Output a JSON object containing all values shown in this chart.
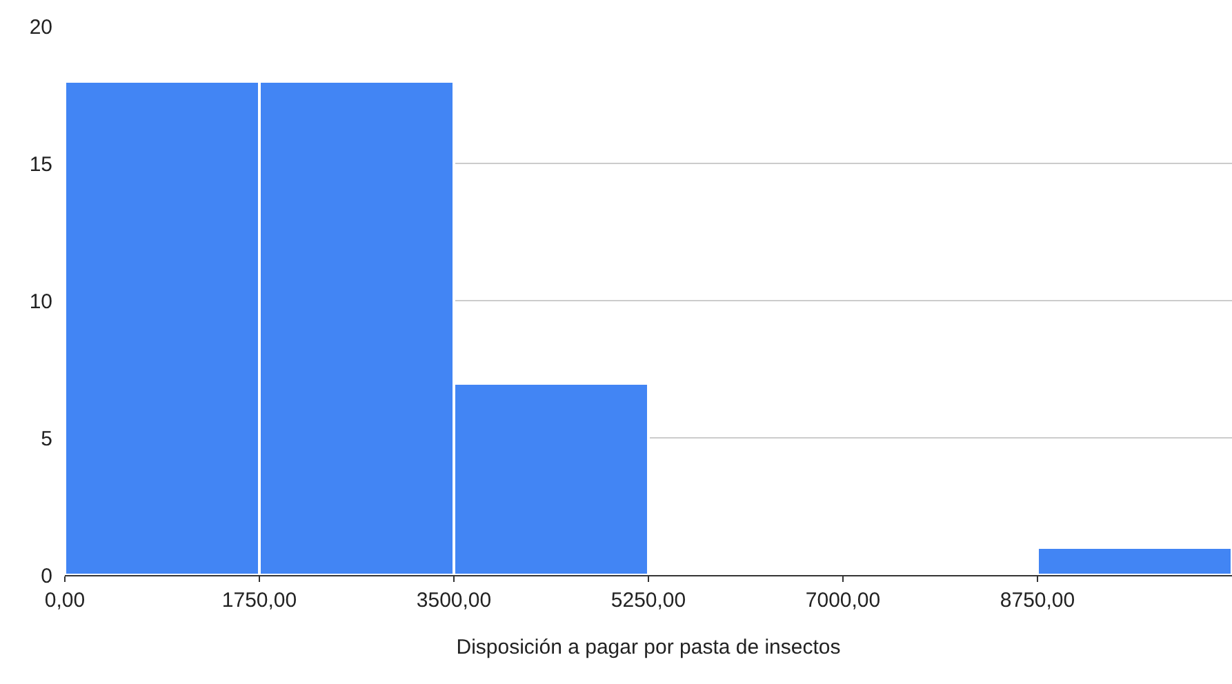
{
  "chart_data": {
    "type": "histogram",
    "xlabel": "Disposición a pagar por pasta de insectos",
    "bins": [
      0,
      1750,
      3500,
      5250,
      7000,
      8750,
      10500
    ],
    "values": [
      18,
      18,
      7,
      0,
      0,
      1
    ],
    "color": "#4285f4",
    "xlim": [
      0,
      10500
    ],
    "xticks": [
      {
        "value": 0,
        "label": "0,00"
      },
      {
        "value": 1750,
        "label": "1750,00"
      },
      {
        "value": 3500,
        "label": "3500,00"
      },
      {
        "value": 5250,
        "label": "5250,00"
      },
      {
        "value": 7000,
        "label": "7000,00"
      },
      {
        "value": 8750,
        "label": "8750,00"
      }
    ],
    "ylim": [
      0,
      20
    ],
    "yticks": [
      0,
      5,
      10,
      15,
      20
    ],
    "grid": "y"
  }
}
